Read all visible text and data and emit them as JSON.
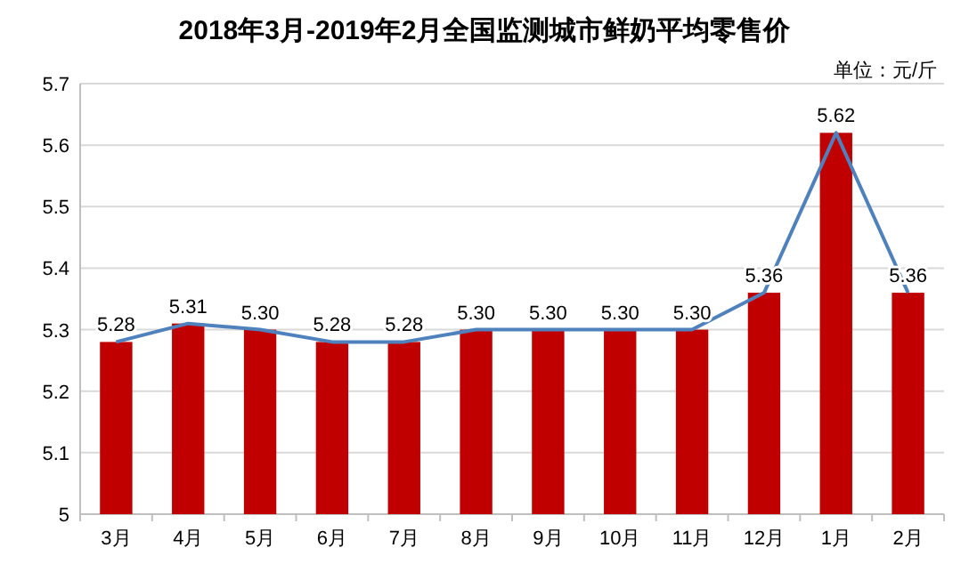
{
  "chart_data": {
    "type": "bar",
    "title": "2018年3月-2019年2月全国监测城市鲜奶平均零售价",
    "categories": [
      "3月",
      "4月",
      "5月",
      "6月",
      "7月",
      "8月",
      "9月",
      "10月",
      "11月",
      "12月",
      "1月",
      "2月"
    ],
    "series": [
      {
        "color": "#c00000",
        "values": [
          5.28,
          5.31,
          5.3,
          5.28,
          5.28,
          5.3,
          5.3,
          5.3,
          5.3,
          5.36,
          5.62,
          5.36
        ],
        "value_labels": [
          "5.28",
          "5.31",
          "5.30",
          "5.28",
          "5.28",
          "5.30",
          "5.30",
          "5.30",
          "5.30",
          "5.36",
          "5.62",
          "5.36"
        ]
      },
      {
        "type": "line",
        "color": "#4f81bd",
        "values": [
          5.28,
          5.31,
          5.3,
          5.28,
          5.28,
          5.3,
          5.3,
          5.3,
          5.3,
          5.36,
          5.62,
          5.36
        ]
      }
    ],
    "ylim": [
      5,
      5.7
    ],
    "yticks": [
      5,
      5.1,
      5.2,
      5.3,
      5.4,
      5.5,
      5.6,
      5.7
    ],
    "grid": "y",
    "annotations": [
      "单位：元/斤"
    ]
  }
}
